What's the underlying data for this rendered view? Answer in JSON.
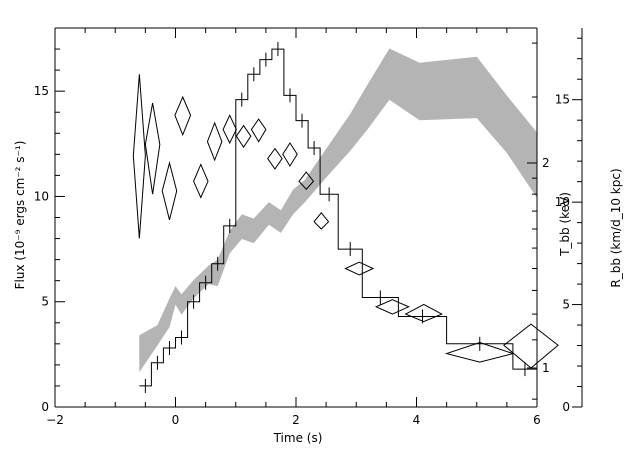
{
  "chart_data": {
    "type": "line",
    "xlabel": "Time (s)",
    "xlim": [
      -2,
      6
    ],
    "x_major_ticks": [
      -2,
      0,
      2,
      4,
      6
    ],
    "x_tick_labels": [
      "−2",
      "0",
      "2",
      "4",
      "6"
    ],
    "left_axis": {
      "label": "Flux (10⁻⁹ ergs cm⁻² s⁻¹)",
      "ylim": [
        0,
        18
      ],
      "major_ticks": [
        0,
        5,
        10,
        15
      ],
      "tick_labels": [
        "0",
        "5",
        "10",
        "15"
      ]
    },
    "kt_axis": {
      "label": "T_bb (keV)",
      "scale": "log",
      "ticks": [
        1,
        2
      ],
      "tick_labels": [
        "1",
        "2"
      ]
    },
    "radius_axis": {
      "label": "R_bb (km/d_10 kpc)",
      "ylim": [
        0,
        18.5
      ],
      "major_ticks": [
        0,
        5,
        10,
        15
      ],
      "tick_labels": [
        "0",
        "5",
        "10",
        "15"
      ]
    },
    "series": [
      {
        "style": "histogram",
        "color": "#000000",
        "bins": [
          {
            "x0": -0.6,
            "x1": -0.4,
            "y": 1.0
          },
          {
            "x0": -0.4,
            "x1": -0.2,
            "y": 2.1
          },
          {
            "x0": -0.2,
            "x1": 0.0,
            "y": 2.8
          },
          {
            "x0": 0.0,
            "x1": 0.2,
            "y": 3.3
          },
          {
            "x0": 0.2,
            "x1": 0.4,
            "y": 5.0
          },
          {
            "x0": 0.4,
            "x1": 0.6,
            "y": 5.9
          },
          {
            "x0": 0.6,
            "x1": 0.8,
            "y": 6.8
          },
          {
            "x0": 0.8,
            "x1": 1.0,
            "y": 8.6
          },
          {
            "x0": 1.0,
            "x1": 1.2,
            "y": 14.6
          },
          {
            "x0": 1.2,
            "x1": 1.4,
            "y": 15.8
          },
          {
            "x0": 1.4,
            "x1": 1.6,
            "y": 16.5
          },
          {
            "x0": 1.6,
            "x1": 1.8,
            "y": 17.0
          },
          {
            "x0": 1.8,
            "x1": 2.0,
            "y": 14.8
          },
          {
            "x0": 2.0,
            "x1": 2.2,
            "y": 13.6
          },
          {
            "x0": 2.2,
            "x1": 2.4,
            "y": 12.3
          },
          {
            "x0": 2.4,
            "x1": 2.7,
            "y": 10.1
          },
          {
            "x0": 2.7,
            "x1": 3.1,
            "y": 7.5
          },
          {
            "x0": 3.1,
            "x1": 3.7,
            "y": 5.2
          },
          {
            "x0": 3.7,
            "x1": 4.5,
            "y": 4.3
          },
          {
            "x0": 4.5,
            "x1": 5.6,
            "y": 3.0
          },
          {
            "x0": 5.6,
            "x1": 6.0,
            "y": 1.8
          }
        ]
      },
      {
        "style": "diamonds",
        "color": "#000000",
        "points": [
          {
            "t": -0.6,
            "kT": 2.05,
            "dt": 0.1,
            "kT_lo": 1.55,
            "kT_hi": 2.7
          },
          {
            "t": -0.38,
            "kT": 2.13,
            "dt": 0.12,
            "kT_lo": 1.8,
            "kT_hi": 2.45
          },
          {
            "t": -0.1,
            "kT": 1.82,
            "dt": 0.12,
            "kT_lo": 1.65,
            "kT_hi": 2.0
          },
          {
            "t": 0.12,
            "kT": 2.35,
            "dt": 0.13,
            "kT_lo": 2.2,
            "kT_hi": 2.5
          },
          {
            "t": 0.42,
            "kT": 1.88,
            "dt": 0.12,
            "kT_lo": 1.78,
            "kT_hi": 1.99
          },
          {
            "t": 0.65,
            "kT": 2.15,
            "dt": 0.12,
            "kT_lo": 2.02,
            "kT_hi": 2.29
          },
          {
            "t": 0.9,
            "kT": 2.24,
            "dt": 0.11,
            "kT_lo": 2.14,
            "kT_hi": 2.35
          },
          {
            "t": 1.13,
            "kT": 2.19,
            "dt": 0.12,
            "kT_lo": 2.11,
            "kT_hi": 2.27
          },
          {
            "t": 1.38,
            "kT": 2.24,
            "dt": 0.12,
            "kT_lo": 2.15,
            "kT_hi": 2.32
          },
          {
            "t": 1.65,
            "kT": 2.03,
            "dt": 0.12,
            "kT_lo": 1.96,
            "kT_hi": 2.1
          },
          {
            "t": 1.9,
            "kT": 2.06,
            "dt": 0.12,
            "kT_lo": 1.98,
            "kT_hi": 2.14
          },
          {
            "t": 2.17,
            "kT": 1.88,
            "dt": 0.12,
            "kT_lo": 1.83,
            "kT_hi": 1.94
          },
          {
            "t": 2.42,
            "kT": 1.64,
            "dt": 0.12,
            "kT_lo": 1.6,
            "kT_hi": 1.69
          },
          {
            "t": 3.05,
            "kT": 1.4,
            "dt": 0.23,
            "kT_lo": 1.37,
            "kT_hi": 1.43
          },
          {
            "t": 3.6,
            "kT": 1.23,
            "dt": 0.27,
            "kT_lo": 1.2,
            "kT_hi": 1.26
          },
          {
            "t": 4.12,
            "kT": 1.2,
            "dt": 0.3,
            "kT_lo": 1.17,
            "kT_hi": 1.24
          },
          {
            "t": 5.05,
            "kT": 1.05,
            "dt": 0.55,
            "kT_lo": 1.02,
            "kT_hi": 1.09
          },
          {
            "t": 5.9,
            "kT": 1.08,
            "dt": 0.45,
            "kT_lo": 1.0,
            "kT_hi": 1.16
          }
        ]
      },
      {
        "style": "band",
        "color": "#b4b4b4",
        "points": [
          {
            "t": -0.6,
            "lo": 1.7,
            "hi": 3.5
          },
          {
            "t": -0.3,
            "lo": 3.0,
            "hi": 4.0
          },
          {
            "t": -0.1,
            "lo": 3.9,
            "hi": 5.3
          },
          {
            "t": 0.0,
            "lo": 5.0,
            "hi": 5.9
          },
          {
            "t": 0.1,
            "lo": 4.5,
            "hi": 5.5
          },
          {
            "t": 0.3,
            "lo": 5.3,
            "hi": 6.2
          },
          {
            "t": 0.55,
            "lo": 6.0,
            "hi": 6.9
          },
          {
            "t": 0.7,
            "lo": 5.9,
            "hi": 7.2
          },
          {
            "t": 0.9,
            "lo": 7.5,
            "hi": 8.6
          },
          {
            "t": 1.1,
            "lo": 8.2,
            "hi": 9.4
          },
          {
            "t": 1.3,
            "lo": 8.0,
            "hi": 9.2
          },
          {
            "t": 1.55,
            "lo": 8.9,
            "hi": 10.0
          },
          {
            "t": 1.75,
            "lo": 8.5,
            "hi": 9.6
          },
          {
            "t": 1.95,
            "lo": 9.4,
            "hi": 10.6
          },
          {
            "t": 2.15,
            "lo": 10.0,
            "hi": 11.1
          },
          {
            "t": 2.5,
            "lo": 11.2,
            "hi": 12.6
          },
          {
            "t": 2.9,
            "lo": 12.5,
            "hi": 14.3
          },
          {
            "t": 3.2,
            "lo": 13.6,
            "hi": 15.8
          },
          {
            "t": 3.55,
            "lo": 15.0,
            "hi": 17.5
          },
          {
            "t": 4.05,
            "lo": 14.0,
            "hi": 16.8
          },
          {
            "t": 5.0,
            "lo": 14.1,
            "hi": 17.1
          },
          {
            "t": 5.5,
            "lo": 12.4,
            "hi": 15.2
          },
          {
            "t": 6.0,
            "lo": 10.2,
            "hi": 13.4
          }
        ]
      }
    ],
    "grid": false,
    "legend": "none"
  }
}
